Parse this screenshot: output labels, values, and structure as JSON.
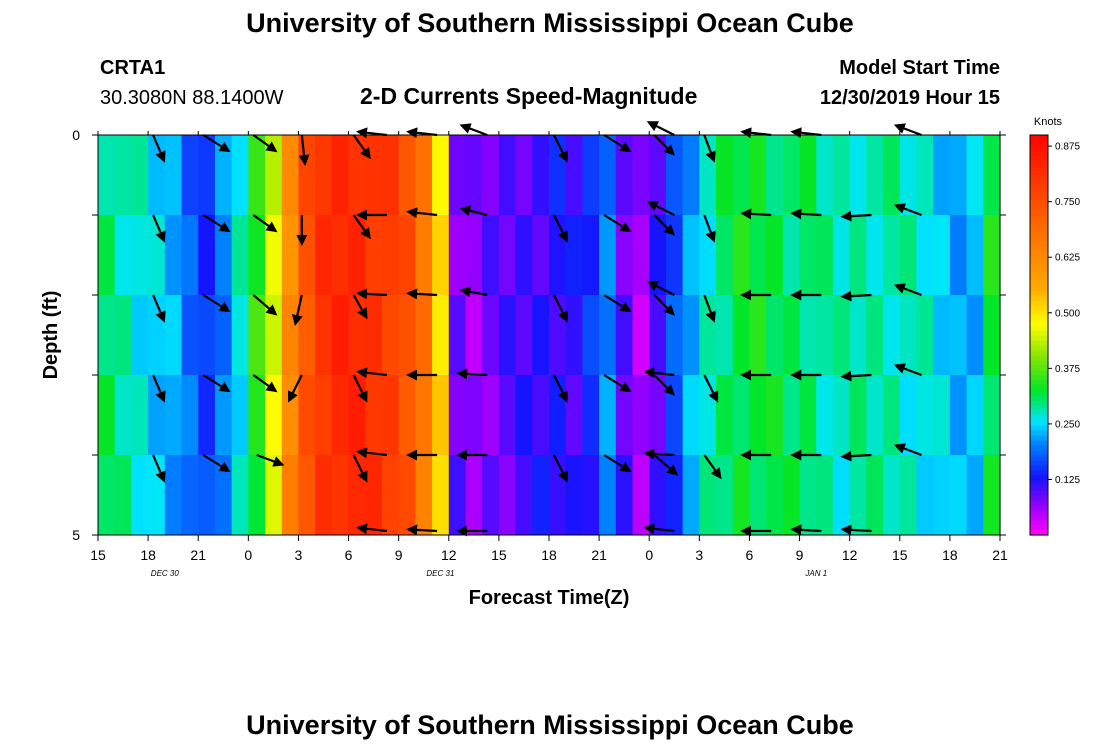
{
  "page_title_top": "University of Southern Mississippi Ocean Cube",
  "page_title_bottom": "University of Southern Mississippi Ocean Cube",
  "station": {
    "id": "CRTA1",
    "coords": "30.3080N 88.1400W"
  },
  "model_start": {
    "label": "Model Start Time",
    "value": "12/30/2019 Hour 15"
  },
  "colors": {
    "arrow": "#000000"
  },
  "chart_data": {
    "type": "heatmap",
    "title": "2-D Currents Speed-Magnitude",
    "xlabel": "Forecast Time(Z)",
    "ylabel": "Depth (ft)",
    "ylim": [
      0,
      5
    ],
    "y_ticks": [
      "0",
      "5"
    ],
    "x_tick_labels": [
      "15",
      "18",
      "21",
      "0",
      "3",
      "6",
      "9",
      "12",
      "15",
      "18",
      "21",
      "0",
      "3",
      "6",
      "9",
      "12",
      "15",
      "18",
      "21"
    ],
    "date_labels": [
      {
        "text": "DEC 30",
        "hour_index": 4
      },
      {
        "text": "DEC 31",
        "hour_index": 20.5
      },
      {
        "text": "JAN 1",
        "hour_index": 43
      }
    ],
    "time_range_hours": [
      0,
      54
    ],
    "depth_layers": 5,
    "colorbar": {
      "unit": "Knots",
      "min": 0.0,
      "max": 0.9,
      "ticks": [
        "0.875",
        "0.750",
        "0.625",
        "0.500",
        "0.375",
        "0.250",
        "0.125"
      ],
      "tick_values": [
        0.875,
        0.75,
        0.625,
        0.5,
        0.375,
        0.25,
        0.125
      ]
    },
    "speed_by_hour_knots": [
      0.3,
      0.28,
      0.26,
      0.24,
      0.22,
      0.18,
      0.15,
      0.2,
      0.26,
      0.34,
      0.45,
      0.62,
      0.74,
      0.8,
      0.82,
      0.82,
      0.8,
      0.78,
      0.74,
      0.66,
      0.5,
      0.08,
      0.06,
      0.08,
      0.09,
      0.1,
      0.11,
      0.12,
      0.11,
      0.14,
      0.2,
      0.09,
      0.05,
      0.1,
      0.16,
      0.22,
      0.27,
      0.3,
      0.32,
      0.32,
      0.31,
      0.3,
      0.3,
      0.28,
      0.27,
      0.28,
      0.28,
      0.28,
      0.27,
      0.26,
      0.24,
      0.22,
      0.23,
      0.32
    ],
    "vectors": [
      {
        "hour": 3.3,
        "depth": 0.0,
        "u": 0.34,
        "v": -0.8
      },
      {
        "hour": 3.3,
        "depth": 1.0,
        "u": 0.34,
        "v": -0.8
      },
      {
        "hour": 3.3,
        "depth": 2.0,
        "u": 0.34,
        "v": -0.8
      },
      {
        "hour": 3.3,
        "depth": 3.0,
        "u": 0.34,
        "v": -0.8
      },
      {
        "hour": 3.3,
        "depth": 4.0,
        "u": 0.34,
        "v": -0.8
      },
      {
        "hour": 6.3,
        "depth": 0.0,
        "u": 0.8,
        "v": -0.5
      },
      {
        "hour": 6.3,
        "depth": 1.0,
        "u": 0.8,
        "v": -0.5
      },
      {
        "hour": 6.3,
        "depth": 2.0,
        "u": 0.8,
        "v": -0.5
      },
      {
        "hour": 6.3,
        "depth": 3.0,
        "u": 0.8,
        "v": -0.5
      },
      {
        "hour": 6.3,
        "depth": 4.0,
        "u": 0.8,
        "v": -0.5
      },
      {
        "hour": 9.3,
        "depth": 0.0,
        "u": 0.7,
        "v": -0.5
      },
      {
        "hour": 9.3,
        "depth": 1.0,
        "u": 0.7,
        "v": -0.5
      },
      {
        "hour": 9.3,
        "depth": 2.0,
        "u": 0.7,
        "v": -0.6
      },
      {
        "hour": 9.3,
        "depth": 3.0,
        "u": 0.7,
        "v": -0.5
      },
      {
        "hour": 9.5,
        "depth": 4.0,
        "u": 0.8,
        "v": -0.3
      },
      {
        "hour": 12.2,
        "depth": 0.0,
        "u": 0.1,
        "v": -0.9
      },
      {
        "hour": 12.2,
        "depth": 1.0,
        "u": 0.0,
        "v": -0.9
      },
      {
        "hour": 12.2,
        "depth": 2.0,
        "u": -0.2,
        "v": -0.9
      },
      {
        "hour": 12.2,
        "depth": 3.0,
        "u": -0.4,
        "v": -0.8
      },
      {
        "hour": 15.3,
        "depth": 0.0,
        "u": 0.5,
        "v": -0.7
      },
      {
        "hour": 15.3,
        "depth": 1.0,
        "u": 0.5,
        "v": -0.7
      },
      {
        "hour": 15.3,
        "depth": 2.0,
        "u": 0.4,
        "v": -0.7
      },
      {
        "hour": 15.3,
        "depth": 3.0,
        "u": 0.4,
        "v": -0.8
      },
      {
        "hour": 15.3,
        "depth": 4.0,
        "u": 0.4,
        "v": -0.8
      },
      {
        "hour": 17.3,
        "depth": 0.0,
        "u": -0.9,
        "v": 0.1
      },
      {
        "hour": 17.3,
        "depth": 1.0,
        "u": -0.9,
        "v": 0.0
      },
      {
        "hour": 17.3,
        "depth": 2.0,
        "u": -0.9,
        "v": 0.05
      },
      {
        "hour": 17.3,
        "depth": 3.0,
        "u": -0.9,
        "v": 0.1
      },
      {
        "hour": 17.3,
        "depth": 4.0,
        "u": -0.9,
        "v": 0.1
      },
      {
        "hour": 17.3,
        "depth": 4.95,
        "u": -0.9,
        "v": 0.1
      },
      {
        "hour": 20.3,
        "depth": 0.0,
        "u": -0.9,
        "v": 0.1
      },
      {
        "hour": 20.3,
        "depth": 1.0,
        "u": -0.9,
        "v": 0.1
      },
      {
        "hour": 20.3,
        "depth": 2.0,
        "u": -0.9,
        "v": 0.05
      },
      {
        "hour": 20.3,
        "depth": 3.0,
        "u": -0.9,
        "v": 0.0
      },
      {
        "hour": 20.3,
        "depth": 4.0,
        "u": -0.9,
        "v": 0.0
      },
      {
        "hour": 20.3,
        "depth": 4.95,
        "u": -0.9,
        "v": 0.05
      },
      {
        "hour": 23.3,
        "depth": 0.0,
        "u": -0.8,
        "v": 0.3
      },
      {
        "hour": 23.3,
        "depth": 1.0,
        "u": -0.8,
        "v": 0.2
      },
      {
        "hour": 23.3,
        "depth": 2.0,
        "u": -0.8,
        "v": 0.15
      },
      {
        "hour": 23.3,
        "depth": 3.0,
        "u": -0.9,
        "v": 0.05
      },
      {
        "hour": 23.3,
        "depth": 4.0,
        "u": -0.9,
        "v": 0.0
      },
      {
        "hour": 23.3,
        "depth": 4.95,
        "u": -0.9,
        "v": 0.0
      },
      {
        "hour": 27.3,
        "depth": 0.0,
        "u": 0.4,
        "v": -0.8
      },
      {
        "hour": 27.3,
        "depth": 1.0,
        "u": 0.4,
        "v": -0.8
      },
      {
        "hour": 27.3,
        "depth": 2.0,
        "u": 0.4,
        "v": -0.8
      },
      {
        "hour": 27.3,
        "depth": 3.0,
        "u": 0.4,
        "v": -0.8
      },
      {
        "hour": 27.3,
        "depth": 4.0,
        "u": 0.4,
        "v": -0.8
      },
      {
        "hour": 30.3,
        "depth": 0.0,
        "u": 0.8,
        "v": -0.5
      },
      {
        "hour": 30.3,
        "depth": 1.0,
        "u": 0.8,
        "v": -0.5
      },
      {
        "hour": 30.3,
        "depth": 2.0,
        "u": 0.8,
        "v": -0.5
      },
      {
        "hour": 30.3,
        "depth": 3.0,
        "u": 0.8,
        "v": -0.5
      },
      {
        "hour": 30.3,
        "depth": 4.0,
        "u": 0.8,
        "v": -0.5
      },
      {
        "hour": 33.3,
        "depth": 0.0,
        "u": 0.6,
        "v": -0.6
      },
      {
        "hour": 33.3,
        "depth": 1.0,
        "u": 0.6,
        "v": -0.6
      },
      {
        "hour": 33.3,
        "depth": 2.0,
        "u": 0.6,
        "v": -0.6
      },
      {
        "hour": 33.3,
        "depth": 3.0,
        "u": 0.6,
        "v": -0.6
      },
      {
        "hour": 33.3,
        "depth": 4.0,
        "u": 0.7,
        "v": -0.6
      },
      {
        "hour": 34.5,
        "depth": 0.0,
        "u": -0.8,
        "v": 0.4
      },
      {
        "hour": 34.5,
        "depth": 1.0,
        "u": -0.8,
        "v": 0.4
      },
      {
        "hour": 34.5,
        "depth": 2.0,
        "u": -0.8,
        "v": 0.4
      },
      {
        "hour": 34.5,
        "depth": 3.0,
        "u": -0.9,
        "v": 0.1
      },
      {
        "hour": 34.5,
        "depth": 4.0,
        "u": -0.9,
        "v": 0.05
      },
      {
        "hour": 34.5,
        "depth": 4.95,
        "u": -0.9,
        "v": 0.1
      },
      {
        "hour": 36.3,
        "depth": 0.0,
        "u": 0.3,
        "v": -0.8
      },
      {
        "hour": 36.3,
        "depth": 1.0,
        "u": 0.3,
        "v": -0.8
      },
      {
        "hour": 36.3,
        "depth": 2.0,
        "u": 0.3,
        "v": -0.8
      },
      {
        "hour": 36.3,
        "depth": 3.0,
        "u": 0.4,
        "v": -0.8
      },
      {
        "hour": 36.3,
        "depth": 4.0,
        "u": 0.5,
        "v": -0.7
      },
      {
        "hour": 40.3,
        "depth": 0.0,
        "u": -0.9,
        "v": 0.1
      },
      {
        "hour": 40.3,
        "depth": 1.0,
        "u": -0.9,
        "v": 0.05
      },
      {
        "hour": 40.3,
        "depth": 2.0,
        "u": -0.9,
        "v": 0.0
      },
      {
        "hour": 40.3,
        "depth": 3.0,
        "u": -0.9,
        "v": 0.0
      },
      {
        "hour": 40.3,
        "depth": 4.0,
        "u": -0.9,
        "v": 0.0
      },
      {
        "hour": 40.3,
        "depth": 4.95,
        "u": -0.9,
        "v": 0.0
      },
      {
        "hour": 43.3,
        "depth": 0.0,
        "u": -0.9,
        "v": 0.1
      },
      {
        "hour": 43.3,
        "depth": 1.0,
        "u": -0.9,
        "v": 0.05
      },
      {
        "hour": 43.3,
        "depth": 2.0,
        "u": -0.9,
        "v": 0.0
      },
      {
        "hour": 43.3,
        "depth": 3.0,
        "u": -0.9,
        "v": 0.0
      },
      {
        "hour": 43.3,
        "depth": 4.0,
        "u": -0.9,
        "v": 0.0
      },
      {
        "hour": 43.3,
        "depth": 4.95,
        "u": -0.9,
        "v": 0.05
      },
      {
        "hour": 46.3,
        "depth": 1.0,
        "u": -0.9,
        "v": -0.05
      },
      {
        "hour": 46.3,
        "depth": 2.0,
        "u": -0.9,
        "v": -0.05
      },
      {
        "hour": 46.3,
        "depth": 3.0,
        "u": -0.9,
        "v": -0.05
      },
      {
        "hour": 46.3,
        "depth": 4.0,
        "u": -0.9,
        "v": -0.05
      },
      {
        "hour": 46.3,
        "depth": 4.95,
        "u": -0.9,
        "v": 0.05
      },
      {
        "hour": 49.3,
        "depth": 0.0,
        "u": -0.8,
        "v": 0.3
      },
      {
        "hour": 49.3,
        "depth": 1.0,
        "u": -0.8,
        "v": 0.3
      },
      {
        "hour": 49.3,
        "depth": 2.0,
        "u": -0.8,
        "v": 0.3
      },
      {
        "hour": 49.3,
        "depth": 3.0,
        "u": -0.8,
        "v": 0.3
      },
      {
        "hour": 49.3,
        "depth": 4.0,
        "u": -0.8,
        "v": 0.3
      }
    ]
  }
}
